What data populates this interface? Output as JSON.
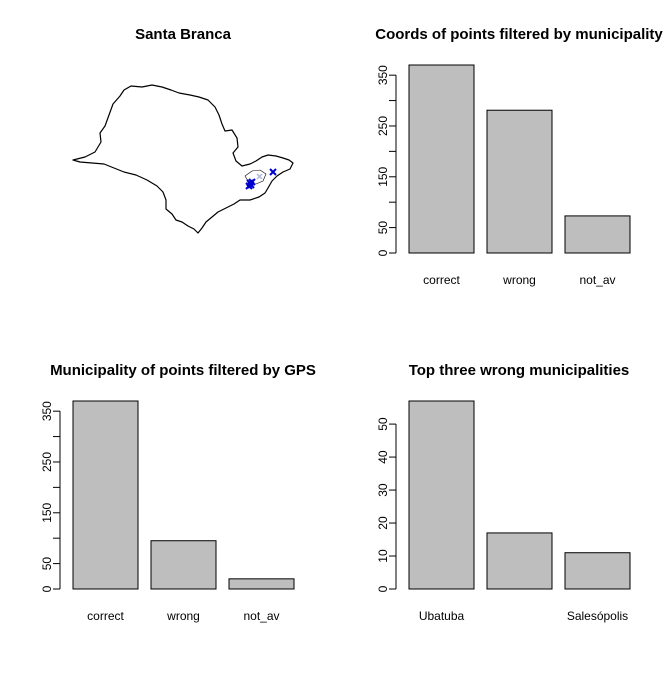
{
  "map_panel": {
    "title": "Santa Branca",
    "colors": {
      "outline": "#000000",
      "points": "#0000cd",
      "faded_point": "#b0b8e0"
    }
  },
  "chart_data": [
    {
      "type": "bar",
      "title": "Coords of points filtered by municipality",
      "categories": [
        "correct",
        "wrong",
        "not_av"
      ],
      "values": [
        370,
        281,
        73
      ],
      "ylim": [
        0,
        370
      ],
      "y_ticks": [
        0,
        50,
        150,
        250,
        350
      ],
      "y_minor_ticks": [
        100,
        200,
        300
      ],
      "xlabel": "",
      "ylabel": ""
    },
    {
      "type": "bar",
      "title": "Municipality of points filtered by GPS",
      "categories": [
        "correct",
        "wrong",
        "not_av"
      ],
      "values": [
        370,
        95,
        20
      ],
      "ylim": [
        0,
        370
      ],
      "y_ticks": [
        0,
        50,
        150,
        250,
        350
      ],
      "y_minor_ticks": [
        100,
        200,
        300
      ],
      "xlabel": "",
      "ylabel": ""
    },
    {
      "type": "bar",
      "title": "Top three wrong municipalities",
      "categories": [
        "Ubatuba",
        "",
        "Salesópolis"
      ],
      "values": [
        57,
        17,
        11
      ],
      "ylim": [
        0,
        57
      ],
      "y_ticks": [
        0,
        10,
        20,
        30,
        40,
        50
      ],
      "y_minor_ticks": [],
      "xlabel": "",
      "ylabel": ""
    }
  ]
}
